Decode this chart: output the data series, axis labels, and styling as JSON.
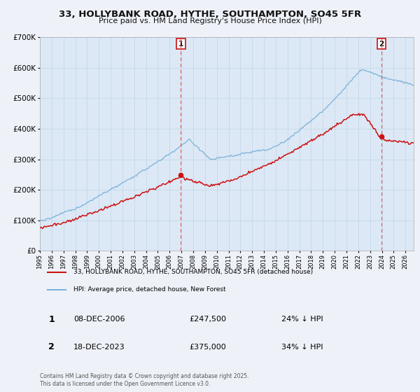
{
  "title_line1": "33, HOLLYBANK ROAD, HYTHE, SOUTHAMPTON, SO45 5FR",
  "title_line2": "Price paid vs. HM Land Registry's House Price Index (HPI)",
  "background_color": "#eef2f8",
  "plot_bg_color": "#dce8f5",
  "grid_color": "#c0d4e8",
  "hpi_color": "#7ab3d9",
  "price_color": "#cc1111",
  "vline_color": "#dd6666",
  "sale1_date": "08-DEC-2006",
  "sale1_price": "£247,500",
  "sale1_hpi": "24% ↓ HPI",
  "sale2_date": "18-DEC-2023",
  "sale2_price": "£375,000",
  "sale2_hpi": "34% ↓ HPI",
  "legend_label1": "33, HOLLYBANK ROAD, HYTHE, SOUTHAMPTON, SO45 5FR (detached house)",
  "legend_label2": "HPI: Average price, detached house, New Forest",
  "footer": "Contains HM Land Registry data © Crown copyright and database right 2025.\nThis data is licensed under the Open Government Licence v3.0.",
  "ylim_max": 700000,
  "start_year": 1995,
  "end_year": 2026,
  "sale1_year": 2006.95,
  "sale2_year": 2023.95,
  "sale1_price_val": 247500,
  "sale2_price_val": 375000
}
